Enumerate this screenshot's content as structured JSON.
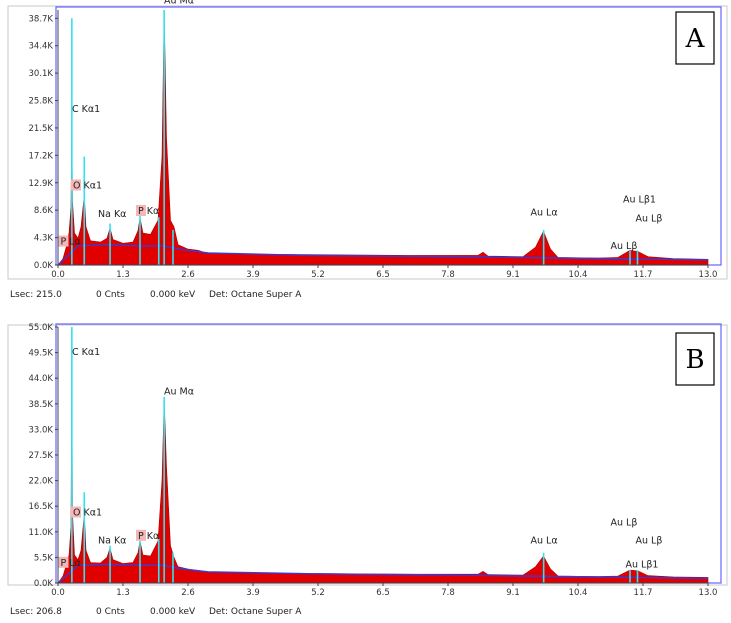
{
  "colors": {
    "spectrum_fill": "#e00000",
    "background_line": "#3a3ad8",
    "peak_marker": "#31e3f0",
    "frame": "#6666ff",
    "label_highlight": "#f4b6b6"
  },
  "chart_data": [
    {
      "type": "area",
      "panel_label": "A",
      "xlim": [
        0.0,
        13.0
      ],
      "ylim": [
        0,
        40000
      ],
      "x_ticks": [
        "0.0",
        "1.3",
        "2.6",
        "3.9",
        "5.2",
        "6.5",
        "7.8",
        "9.1",
        "10.4",
        "11.7",
        "13.0"
      ],
      "y_ticks": [
        "0.0K",
        "4.3K",
        "8.6K",
        "12.9K",
        "17.2K",
        "21.5K",
        "25.8K",
        "30.1K",
        "34.4K",
        "38.7K"
      ],
      "spectrum": [
        [
          0.0,
          0
        ],
        [
          0.1,
          1000
        ],
        [
          0.17,
          3000
        ],
        [
          0.22,
          5000
        ],
        [
          0.26,
          9000
        ],
        [
          0.277,
          24000
        ],
        [
          0.29,
          10000
        ],
        [
          0.33,
          5000
        ],
        [
          0.4,
          4200
        ],
        [
          0.46,
          6000
        ],
        [
          0.525,
          11000
        ],
        [
          0.56,
          6000
        ],
        [
          0.65,
          3800
        ],
        [
          0.85,
          3600
        ],
        [
          0.98,
          4200
        ],
        [
          1.04,
          5800
        ],
        [
          1.1,
          4000
        ],
        [
          1.3,
          3400
        ],
        [
          1.5,
          3600
        ],
        [
          1.6,
          5400
        ],
        [
          1.64,
          7400
        ],
        [
          1.7,
          5000
        ],
        [
          1.85,
          4800
        ],
        [
          2.0,
          7000
        ],
        [
          2.08,
          17000
        ],
        [
          2.123,
          40000
        ],
        [
          2.17,
          20000
        ],
        [
          2.25,
          7000
        ],
        [
          2.32,
          6000
        ],
        [
          2.4,
          3200
        ],
        [
          2.6,
          2500
        ],
        [
          2.8,
          2300
        ],
        [
          3.0,
          1800
        ],
        [
          4.0,
          1700
        ],
        [
          5.5,
          1600
        ],
        [
          7.0,
          1500
        ],
        [
          8.4,
          1500
        ],
        [
          8.5,
          2000
        ],
        [
          8.6,
          1400
        ],
        [
          9.3,
          1300
        ],
        [
          9.55,
          2800
        ],
        [
          9.71,
          5300
        ],
        [
          9.85,
          2500
        ],
        [
          10.0,
          1200
        ],
        [
          10.8,
          1100
        ],
        [
          11.2,
          1200
        ],
        [
          11.44,
          2300
        ],
        [
          11.6,
          2100
        ],
        [
          11.8,
          1300
        ],
        [
          12.3,
          1000
        ],
        [
          13.0,
          900
        ]
      ],
      "background": [
        [
          0.0,
          0
        ],
        [
          0.4,
          3000
        ],
        [
          1.0,
          3200
        ],
        [
          1.6,
          3000
        ],
        [
          2.1,
          3000
        ],
        [
          2.5,
          2400
        ],
        [
          3.0,
          1900
        ],
        [
          5.0,
          1500
        ],
        [
          8.0,
          1300
        ],
        [
          10.0,
          1100
        ],
        [
          13.0,
          800
        ]
      ],
      "marker_lines": [
        {
          "x": 0.277,
          "y": 38700
        },
        {
          "x": 0.525,
          "y": 17000
        },
        {
          "x": 1.041,
          "y": 6500
        },
        {
          "x": 1.64,
          "y": 8000
        },
        {
          "x": 2.015,
          "y": 7500
        },
        {
          "x": 2.123,
          "y": 40000
        },
        {
          "x": 2.3,
          "y": 5500
        },
        {
          "x": 9.713,
          "y": 5500
        },
        {
          "x": 11.44,
          "y": 2300
        },
        {
          "x": 11.59,
          "y": 2300
        }
      ],
      "peak_labels": [
        {
          "text": "Au Mα",
          "x": 2.12,
          "y": 41000,
          "hl": false
        },
        {
          "text": "C  Kα1",
          "x": 0.28,
          "y": 24000,
          "hl": false
        },
        {
          "text": "O  Kα1",
          "x": 0.3,
          "y": 12000,
          "hl": true
        },
        {
          "text": "Na Kα",
          "x": 0.8,
          "y": 7500,
          "hl": false
        },
        {
          "text": "P  Kα",
          "x": 1.6,
          "y": 8000,
          "hl": true
        },
        {
          "text": "P  Lα",
          "x": 0.05,
          "y": 3200,
          "hl": true
        },
        {
          "text": "Au Lα",
          "x": 9.45,
          "y": 7800,
          "hl": false
        },
        {
          "text": "Au Lβ1",
          "x": 11.3,
          "y": 9800,
          "hl": false
        },
        {
          "text": "Au Lβ",
          "x": 11.55,
          "y": 6800,
          "hl": false
        },
        {
          "text": "Au Lβ",
          "x": 11.05,
          "y": 2500,
          "hl": false
        }
      ],
      "status": {
        "lsec": "Lsec: 215.0",
        "cnts": "0 Cnts",
        "kev": "0.000 keV",
        "det": "Det: Octane Super A"
      }
    },
    {
      "type": "area",
      "panel_label": "B",
      "xlim": [
        0.0,
        13.0
      ],
      "ylim": [
        0,
        55000
      ],
      "x_ticks": [
        "0.0",
        "1.3",
        "2.6",
        "3.9",
        "5.2",
        "6.5",
        "7.8",
        "9.1",
        "10.4",
        "11.7",
        "13.0"
      ],
      "y_ticks": [
        "0.0K",
        "5.5K",
        "11.0K",
        "16.5K",
        "22.0K",
        "27.5K",
        "33.0K",
        "38.5K",
        "44.0K",
        "49.5K",
        "55.0K"
      ],
      "spectrum": [
        [
          0.0,
          0
        ],
        [
          0.1,
          1500
        ],
        [
          0.17,
          4000
        ],
        [
          0.22,
          6000
        ],
        [
          0.26,
          12000
        ],
        [
          0.277,
          50000
        ],
        [
          0.29,
          15000
        ],
        [
          0.33,
          6000
        ],
        [
          0.4,
          5000
        ],
        [
          0.46,
          7000
        ],
        [
          0.525,
          15000
        ],
        [
          0.56,
          7000
        ],
        [
          0.65,
          4400
        ],
        [
          0.85,
          4300
        ],
        [
          0.98,
          5500
        ],
        [
          1.04,
          7500
        ],
        [
          1.1,
          5000
        ],
        [
          1.3,
          4200
        ],
        [
          1.5,
          4400
        ],
        [
          1.6,
          6500
        ],
        [
          1.64,
          9000
        ],
        [
          1.7,
          6000
        ],
        [
          1.85,
          5800
        ],
        [
          2.0,
          9000
        ],
        [
          2.08,
          22000
        ],
        [
          2.123,
          39500
        ],
        [
          2.17,
          25000
        ],
        [
          2.25,
          8000
        ],
        [
          2.32,
          5500
        ],
        [
          2.4,
          3500
        ],
        [
          2.6,
          3000
        ],
        [
          2.8,
          2700
        ],
        [
          3.0,
          2300
        ],
        [
          4.0,
          2100
        ],
        [
          5.5,
          2000
        ],
        [
          7.0,
          1900
        ],
        [
          8.4,
          1900
        ],
        [
          8.5,
          2500
        ],
        [
          8.6,
          1800
        ],
        [
          9.3,
          1700
        ],
        [
          9.55,
          3500
        ],
        [
          9.71,
          5800
        ],
        [
          9.85,
          3000
        ],
        [
          10.0,
          1500
        ],
        [
          10.8,
          1400
        ],
        [
          11.2,
          1500
        ],
        [
          11.44,
          2800
        ],
        [
          11.6,
          2600
        ],
        [
          11.8,
          1600
        ],
        [
          12.3,
          1300
        ],
        [
          13.0,
          1200
        ]
      ],
      "background": [
        [
          0.0,
          0
        ],
        [
          0.4,
          3800
        ],
        [
          1.0,
          4000
        ],
        [
          1.6,
          3800
        ],
        [
          2.1,
          3800
        ],
        [
          2.5,
          3000
        ],
        [
          3.0,
          2400
        ],
        [
          5.0,
          2000
        ],
        [
          8.0,
          1700
        ],
        [
          10.0,
          1400
        ],
        [
          13.0,
          1000
        ]
      ],
      "marker_lines": [
        {
          "x": 0.277,
          "y": 55000
        },
        {
          "x": 0.525,
          "y": 19500
        },
        {
          "x": 1.041,
          "y": 8000
        },
        {
          "x": 1.64,
          "y": 9500
        },
        {
          "x": 2.015,
          "y": 9500
        },
        {
          "x": 2.123,
          "y": 40000
        },
        {
          "x": 2.3,
          "y": 6500
        },
        {
          "x": 9.713,
          "y": 6500
        },
        {
          "x": 11.44,
          "y": 2800
        },
        {
          "x": 11.59,
          "y": 2800
        }
      ],
      "peak_labels": [
        {
          "text": "C  Kα1",
          "x": 0.28,
          "y": 49000,
          "hl": false
        },
        {
          "text": "Au Mα",
          "x": 2.12,
          "y": 40500,
          "hl": false
        },
        {
          "text": "O  Kα1",
          "x": 0.3,
          "y": 14500,
          "hl": true
        },
        {
          "text": "Na Kα",
          "x": 0.8,
          "y": 8500,
          "hl": false
        },
        {
          "text": "P  Kα",
          "x": 1.6,
          "y": 9500,
          "hl": true
        },
        {
          "text": "P  Lα",
          "x": 0.05,
          "y": 3700,
          "hl": true
        },
        {
          "text": "Au Lα",
          "x": 9.45,
          "y": 8500,
          "hl": false
        },
        {
          "text": "Au Lβ",
          "x": 11.05,
          "y": 12300,
          "hl": false
        },
        {
          "text": "Au Lβ",
          "x": 11.55,
          "y": 8500,
          "hl": false
        },
        {
          "text": "Au Lβ1",
          "x": 11.35,
          "y": 3300,
          "hl": false
        }
      ],
      "status": {
        "lsec": "Lsec: 206.8",
        "cnts": "0 Cnts",
        "kev": "0.000 keV",
        "det": "Det: Octane Super A"
      }
    }
  ]
}
